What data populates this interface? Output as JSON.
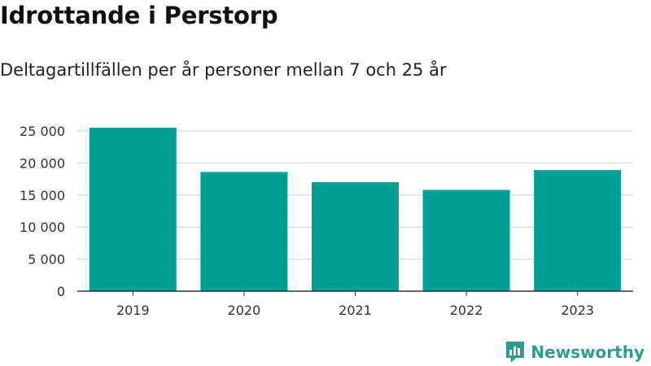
{
  "title": "Idrottande i Perstorp",
  "subtitle": "Deltagartillfällen per år personer mellan 7 och 25 år",
  "brand": {
    "name": "Newsworthy",
    "color": "#2a9d8f"
  },
  "colors": {
    "bar": "#00a096",
    "grid": "#dddddd",
    "axis": "#333333",
    "text": "#333333"
  },
  "chart_data": {
    "type": "bar",
    "categories": [
      "2019",
      "2020",
      "2021",
      "2022",
      "2023"
    ],
    "values": [
      25500,
      18600,
      17000,
      15800,
      18900
    ],
    "ylim": [
      0,
      25000
    ],
    "yticks": [
      0,
      5000,
      10000,
      15000,
      20000,
      25000
    ],
    "ytick_labels": [
      "0",
      "5 000",
      "10 000",
      "15 000",
      "20 000",
      "25 000"
    ],
    "grid": true,
    "xlabel": "",
    "ylabel": ""
  }
}
